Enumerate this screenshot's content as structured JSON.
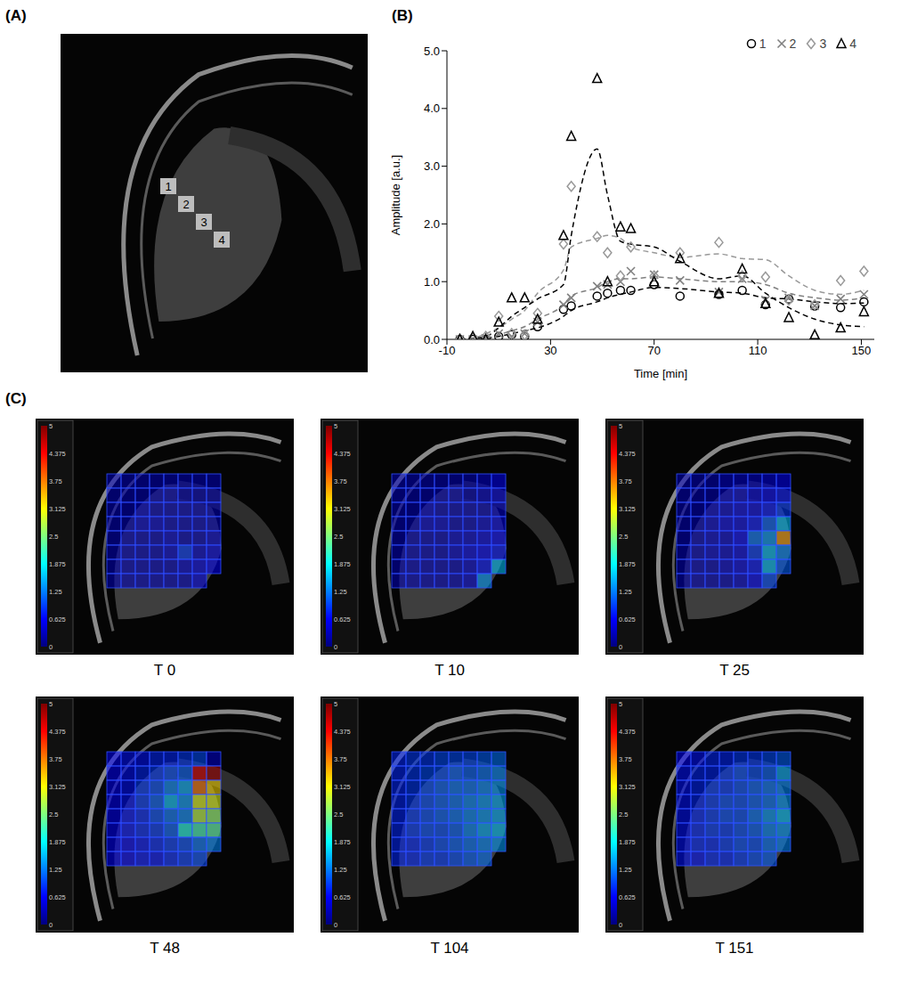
{
  "panel_labels": [
    "(A)",
    "(B)",
    "(C)"
  ],
  "panel_a": {
    "roi_labels": [
      "1",
      "2",
      "3",
      "4"
    ]
  },
  "chart_data": {
    "type": "scatter",
    "x_label": "Time [min]",
    "y_label": "Amplitude [a.u.]",
    "x": [
      -5,
      0,
      5,
      10,
      15,
      20,
      25,
      35,
      38,
      48,
      52,
      57,
      61,
      70,
      80,
      95,
      104,
      113,
      122,
      132,
      142,
      151
    ],
    "xlim": [
      -10,
      155
    ],
    "xticks": [
      -10,
      30,
      70,
      110,
      150
    ],
    "ylim": [
      0,
      5
    ],
    "yticks": [
      {
        "value": 0,
        "label": "0.0"
      },
      {
        "value": 1,
        "label": "1.0"
      },
      {
        "value": 2,
        "label": "2.0"
      },
      {
        "value": 3,
        "label": "3.0"
      },
      {
        "value": 4,
        "label": "4.0"
      },
      {
        "value": 5,
        "label": "5.0"
      }
    ],
    "grid": false,
    "legend": "upper right",
    "series": [
      {
        "name": "1",
        "color": "#000000",
        "marker": "circle",
        "line_style": "dashed",
        "values": [
          0,
          0,
          0,
          0.05,
          0.08,
          0.05,
          0.22,
          0.52,
          0.58,
          0.75,
          0.8,
          0.85,
          0.85,
          0.95,
          0.75,
          0.78,
          0.85,
          0.6,
          0.7,
          0.58,
          0.55,
          0.65
        ],
        "trend": [
          0,
          0,
          0.02,
          0.05,
          0.1,
          0.15,
          0.2,
          0.4,
          0.5,
          0.65,
          0.72,
          0.78,
          0.82,
          0.9,
          0.88,
          0.82,
          0.8,
          0.72,
          0.7,
          0.65,
          0.62,
          0.63
        ]
      },
      {
        "name": "2",
        "color": "#808080",
        "marker": "x",
        "line_style": "dashed",
        "values": [
          0,
          0,
          0.02,
          0.1,
          0.05,
          0.1,
          0.3,
          0.6,
          0.72,
          0.92,
          0.95,
          1.0,
          1.18,
          1.12,
          1.02,
          0.82,
          1.05,
          0.68,
          0.72,
          0.58,
          0.7,
          0.78
        ],
        "trend": [
          0,
          0,
          0.02,
          0.08,
          0.15,
          0.22,
          0.35,
          0.6,
          0.75,
          0.9,
          1.0,
          1.05,
          1.05,
          1.08,
          1.05,
          1.0,
          1.0,
          0.95,
          0.8,
          0.72,
          0.68,
          0.72
        ]
      },
      {
        "name": "3",
        "color": "#999999",
        "marker": "diamond",
        "line_style": "dashed",
        "values": [
          0,
          0.03,
          0.05,
          0.4,
          0.1,
          0.08,
          0.45,
          1.65,
          2.65,
          1.78,
          1.5,
          1.1,
          1.6,
          1.1,
          1.5,
          1.68,
          1.1,
          1.08,
          0.68,
          0.6,
          1.02,
          1.18
        ],
        "trend": [
          0,
          0.02,
          0.1,
          0.2,
          0.35,
          0.5,
          0.8,
          1.2,
          1.6,
          1.75,
          1.8,
          1.75,
          1.6,
          1.5,
          1.42,
          1.48,
          1.4,
          1.38,
          1.1,
          0.85,
          0.78,
          0.85
        ]
      },
      {
        "name": "4",
        "color": "#000000",
        "marker": "triangle",
        "line_style": "dashed",
        "values": [
          0,
          0.05,
          0,
          0.3,
          0.72,
          0.72,
          0.35,
          1.8,
          3.52,
          4.52,
          1.0,
          1.95,
          1.92,
          1.0,
          1.4,
          0.8,
          1.22,
          0.62,
          0.38,
          0.08,
          0.2,
          0.48
        ],
        "trend": [
          0,
          0.02,
          0.05,
          0.2,
          0.4,
          0.55,
          0.7,
          0.95,
          1.8,
          3.3,
          2.5,
          1.7,
          1.65,
          1.6,
          1.35,
          1.05,
          1.1,
          0.8,
          0.55,
          0.35,
          0.25,
          0.22
        ]
      }
    ]
  },
  "heatmaps": {
    "colorbar": {
      "range": [
        0,
        5
      ],
      "ticks": [
        0,
        0.625,
        1.25,
        1.875,
        2.5,
        3.125,
        3.75,
        4.375,
        5
      ]
    },
    "frames": [
      {
        "label": "T 0",
        "cells": [
          [
            0.3,
            0.3,
            0.3,
            0.3,
            0.3,
            0.3,
            0.3,
            0.3
          ],
          [
            0.3,
            0.3,
            0.3,
            0.3,
            0.3,
            0.3,
            0.3,
            0.3
          ],
          [
            0.3,
            0.3,
            0.4,
            0.3,
            0.3,
            0.3,
            0.3,
            0.3
          ],
          [
            0.3,
            0.3,
            0.4,
            0.4,
            0.3,
            0.3,
            0.3,
            0.3
          ],
          [
            0.3,
            0.3,
            0.3,
            0.3,
            0.4,
            0.3,
            0.3,
            0.4
          ],
          [
            0.3,
            0.3,
            0.3,
            0.3,
            0.4,
            0.9,
            0.4,
            0.5
          ],
          [
            0.3,
            0.3,
            0.3,
            0.3,
            0.3,
            0.4,
            0.5,
            0.6
          ],
          [
            0.3,
            0.3,
            0.3,
            0.3,
            0.3,
            0.3,
            0.5,
            null
          ]
        ]
      },
      {
        "label": "T 10",
        "cells": [
          [
            0.3,
            0.3,
            0.3,
            0.3,
            0.3,
            0.3,
            0.4,
            0.6
          ],
          [
            0.3,
            0.3,
            0.3,
            0.3,
            0.3,
            0.3,
            0.4,
            0.5
          ],
          [
            0.3,
            0.3,
            0.4,
            0.3,
            0.3,
            0.3,
            0.3,
            0.4
          ],
          [
            0.3,
            0.3,
            0.4,
            0.4,
            0.3,
            0.3,
            0.4,
            0.5
          ],
          [
            0.3,
            0.3,
            0.3,
            0.3,
            0.4,
            0.4,
            0.5,
            0.6
          ],
          [
            0.3,
            0.3,
            0.3,
            0.3,
            0.4,
            0.5,
            0.6,
            0.7
          ],
          [
            0.3,
            0.3,
            0.3,
            0.3,
            0.3,
            0.4,
            0.7,
            1.6
          ],
          [
            0.3,
            0.3,
            0.3,
            0.3,
            0.3,
            0.4,
            1.4,
            null
          ]
        ]
      },
      {
        "label": "T 25",
        "cells": [
          [
            0.3,
            0.3,
            0.3,
            0.4,
            0.4,
            0.4,
            0.5,
            0.6
          ],
          [
            0.3,
            0.3,
            0.3,
            0.4,
            0.4,
            0.5,
            0.6,
            0.7
          ],
          [
            0.3,
            0.3,
            0.4,
            0.4,
            0.5,
            0.5,
            0.7,
            0.9
          ],
          [
            0.3,
            0.3,
            0.4,
            0.5,
            0.5,
            0.7,
            1.1,
            1.6
          ],
          [
            0.3,
            0.3,
            0.4,
            0.4,
            0.6,
            1.2,
            1.4,
            3.6
          ],
          [
            0.3,
            0.3,
            0.4,
            0.4,
            0.5,
            0.9,
            1.6,
            1.3
          ],
          [
            0.3,
            0.3,
            0.3,
            0.4,
            0.5,
            0.7,
            1.6,
            1.1
          ],
          [
            0.3,
            0.3,
            0.3,
            0.3,
            0.4,
            0.6,
            1.0,
            null
          ]
        ]
      },
      {
        "label": "T 48",
        "cells": [
          [
            0.6,
            0.7,
            0.7,
            0.8,
            0.8,
            0.9,
            1.0,
            0.4
          ],
          [
            0.6,
            0.7,
            0.8,
            0.9,
            1.0,
            1.1,
            4.5,
            4.8
          ],
          [
            0.6,
            0.7,
            0.9,
            1.0,
            1.3,
            1.5,
            3.8,
            3.3
          ],
          [
            0.6,
            0.7,
            0.9,
            1.1,
            1.6,
            1.4,
            3.0,
            3.0
          ],
          [
            0.6,
            0.7,
            0.8,
            1.0,
            1.2,
            1.3,
            2.8,
            2.6
          ],
          [
            0.6,
            0.7,
            0.8,
            0.9,
            1.1,
            2.0,
            2.2,
            2.3
          ],
          [
            0.6,
            0.6,
            0.7,
            0.8,
            0.9,
            1.0,
            1.2,
            1.3
          ],
          [
            0.6,
            0.6,
            0.7,
            0.7,
            0.8,
            0.9,
            1.0,
            null
          ]
        ]
      },
      {
        "label": "T 104",
        "cells": [
          [
            0.8,
            0.9,
            0.9,
            1.0,
            1.0,
            1.0,
            1.1,
            1.2
          ],
          [
            0.8,
            0.9,
            1.0,
            1.0,
            1.1,
            1.1,
            1.2,
            1.3
          ],
          [
            0.8,
            0.9,
            1.0,
            1.1,
            1.2,
            1.2,
            1.3,
            1.4
          ],
          [
            0.8,
            0.9,
            1.0,
            1.1,
            1.2,
            1.3,
            1.4,
            1.5
          ],
          [
            0.8,
            0.9,
            1.0,
            1.1,
            1.2,
            1.3,
            1.4,
            1.5
          ],
          [
            0.8,
            0.9,
            1.0,
            1.0,
            1.1,
            1.3,
            1.5,
            1.6
          ],
          [
            0.8,
            0.8,
            0.9,
            1.0,
            1.1,
            1.2,
            1.3,
            1.4
          ],
          [
            0.8,
            0.8,
            0.9,
            0.9,
            1.0,
            1.1,
            1.2,
            null
          ]
        ]
      },
      {
        "label": "T 151",
        "cells": [
          [
            0.6,
            0.7,
            0.8,
            0.8,
            0.9,
            0.9,
            1.0,
            1.1
          ],
          [
            0.7,
            0.8,
            0.8,
            0.9,
            1.0,
            1.0,
            1.1,
            1.5
          ],
          [
            0.7,
            0.8,
            0.9,
            0.9,
            1.0,
            1.1,
            1.2,
            1.3
          ],
          [
            0.7,
            0.8,
            0.9,
            1.0,
            1.0,
            1.1,
            1.2,
            1.4
          ],
          [
            0.7,
            0.8,
            0.9,
            1.0,
            1.0,
            1.2,
            1.4,
            1.6
          ],
          [
            0.7,
            0.8,
            0.9,
            0.9,
            1.0,
            1.1,
            1.3,
            1.4
          ],
          [
            0.7,
            0.8,
            0.8,
            0.9,
            1.0,
            1.0,
            1.2,
            1.3
          ],
          [
            0.7,
            0.7,
            0.8,
            0.8,
            0.9,
            1.0,
            1.1,
            null
          ]
        ]
      }
    ]
  }
}
